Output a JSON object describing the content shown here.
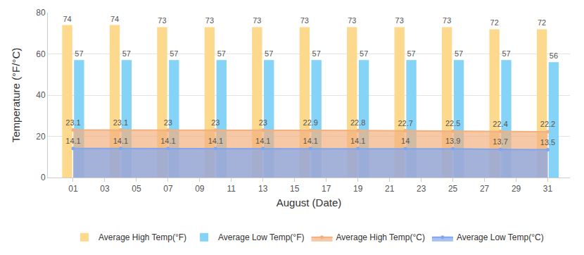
{
  "chart_data": {
    "type": "bar",
    "x_label": "August (Date)",
    "y_label": "Temperature (°F/°C)",
    "x": [
      1,
      4,
      7,
      10,
      13,
      16,
      19,
      22,
      25,
      28,
      31
    ],
    "xlim": [
      -0.6,
      32.4
    ],
    "xticks": [
      {
        "value": 1,
        "label": "01"
      },
      {
        "value": 3,
        "label": "03"
      },
      {
        "value": 5,
        "label": "05"
      },
      {
        "value": 7,
        "label": "07"
      },
      {
        "value": 9,
        "label": "09"
      },
      {
        "value": 11,
        "label": "11"
      },
      {
        "value": 13,
        "label": "13"
      },
      {
        "value": 15,
        "label": "15"
      },
      {
        "value": 17,
        "label": "17"
      },
      {
        "value": 19,
        "label": "19"
      },
      {
        "value": 21,
        "label": "21"
      },
      {
        "value": 23,
        "label": "23"
      },
      {
        "value": 25,
        "label": "25"
      },
      {
        "value": 27,
        "label": "27"
      },
      {
        "value": 29,
        "label": "29"
      },
      {
        "value": 31,
        "label": "31"
      }
    ],
    "ylim": [
      0,
      80
    ],
    "yticks": [
      0,
      20,
      40,
      60,
      80
    ],
    "grid": true,
    "legend": "bottom",
    "data_labels": true,
    "series": [
      {
        "name": "Average High Temp(°F)",
        "type": "bar",
        "color": "#fcd98c",
        "values": [
          74,
          74,
          73,
          73,
          73,
          73,
          73,
          73,
          73,
          72,
          72
        ]
      },
      {
        "name": "Average Low Temp(°F)",
        "type": "bar",
        "color": "#85d3f7",
        "values": [
          57,
          57,
          57,
          57,
          57,
          57,
          57,
          57,
          57,
          57,
          56
        ]
      },
      {
        "name": "Average High Temp(°C)",
        "type": "area",
        "color": "#f2b07f",
        "values": [
          23.1,
          23.1,
          23,
          23,
          23,
          22.9,
          22.8,
          22.7,
          22.5,
          22.4,
          22.2
        ]
      },
      {
        "name": "Average Low Temp(°C)",
        "type": "area",
        "color": "#82a6ee",
        "values": [
          14.1,
          14.1,
          14.1,
          14.1,
          14.1,
          14.1,
          14.1,
          14,
          13.9,
          13.7,
          13.5
        ]
      }
    ]
  }
}
